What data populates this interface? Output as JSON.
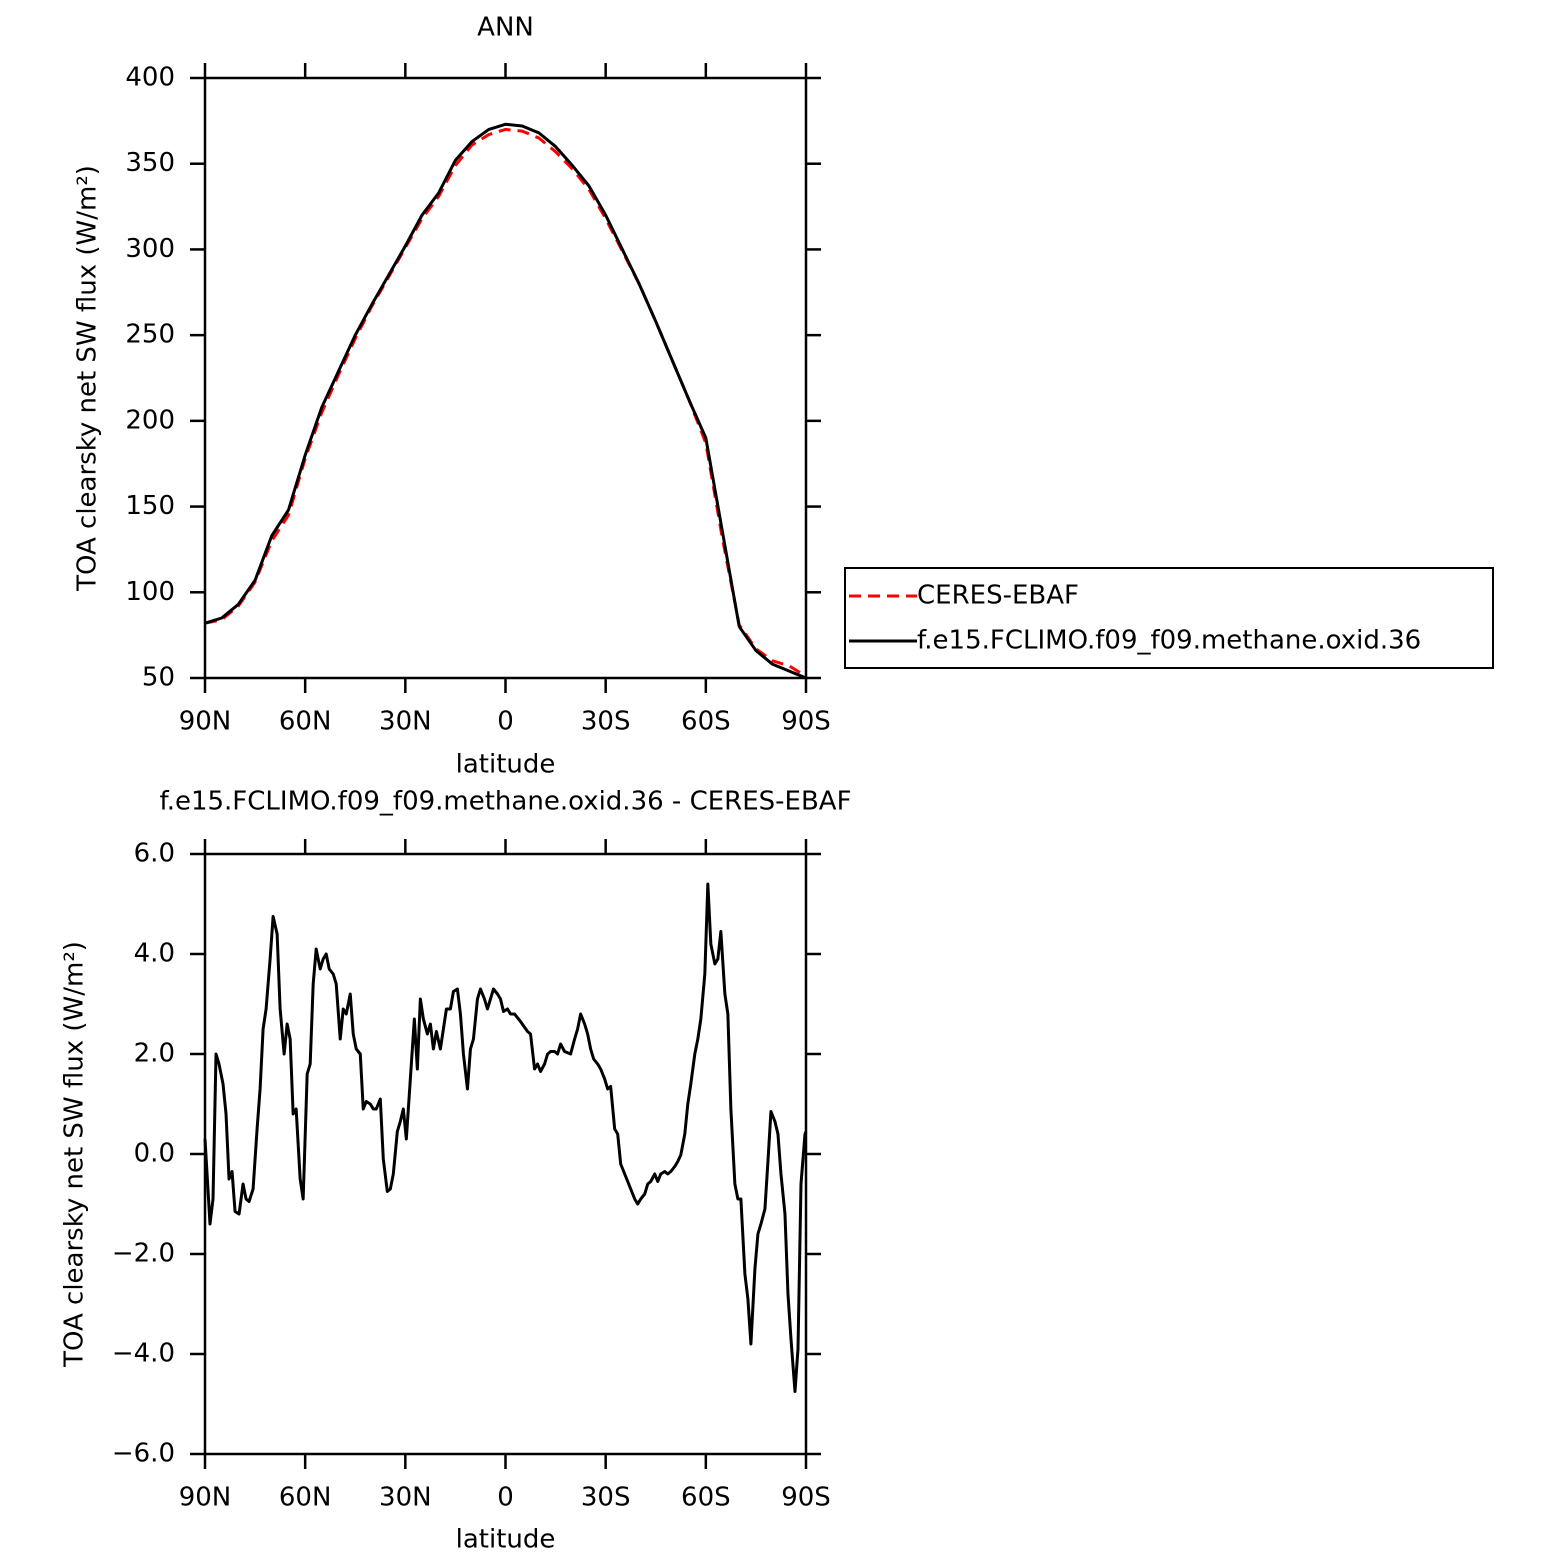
{
  "chart_data": [
    {
      "type": "line",
      "title": "ANN",
      "x_label": "latitude",
      "y_label": "TOA clearsky net SW flux (W/m²)",
      "x": [
        90,
        85,
        80,
        75,
        70,
        65,
        60,
        55,
        50,
        45,
        40,
        35,
        30,
        25,
        20,
        15,
        10,
        5,
        0,
        -5,
        -10,
        -15,
        -20,
        -25,
        -30,
        -35,
        -40,
        -45,
        -50,
        -55,
        -60,
        -65,
        -70,
        -75,
        -80,
        -85,
        -90
      ],
      "series": [
        {
          "name": "CERES-EBAF",
          "color": "#ff0000",
          "line_style": "dashed",
          "values": [
            82,
            84,
            92,
            106,
            130,
            145,
            178,
            205,
            227,
            248,
            267,
            284,
            301,
            318,
            331,
            349,
            361,
            367,
            370,
            369,
            365,
            357,
            347,
            335,
            318,
            299,
            280,
            258,
            235,
            212,
            187,
            131,
            81,
            67,
            60,
            57,
            51
          ]
        },
        {
          "name": "f.e15.FCLIMO.f09_f09.methane.oxid.36",
          "color": "#000000",
          "line_style": "solid",
          "values": [
            82,
            85,
            93,
            107,
            133,
            148,
            180,
            208,
            229,
            250,
            268,
            285,
            302,
            320,
            333,
            352,
            363,
            370,
            373,
            372,
            368,
            360,
            349,
            337,
            320,
            300,
            280,
            258,
            235,
            212,
            190,
            135,
            80,
            66,
            58,
            54,
            50
          ]
        }
      ],
      "xlim": [
        90,
        -90
      ],
      "xticks": [
        {
          "value": 90,
          "label": "90N"
        },
        {
          "value": 60,
          "label": "60N"
        },
        {
          "value": 30,
          "label": "30N"
        },
        0,
        {
          "value": -30,
          "label": "30S"
        },
        {
          "value": -60,
          "label": "60S"
        },
        {
          "value": -90,
          "label": "90S"
        }
      ],
      "ylim": [
        50,
        400
      ],
      "yticks": [
        50,
        100,
        150,
        200,
        250,
        300,
        350,
        400
      ],
      "legend": "outside-right"
    },
    {
      "type": "line",
      "title": "f.e15.FCLIMO.f09_f09.methane.oxid.36 - CERES-EBAF",
      "x_label": "latitude",
      "y_label": "TOA clearsky net SW flux (W/m²)",
      "color": "#000000",
      "x": [
        90,
        88.5,
        87.6,
        86.7,
        85.8,
        84.6,
        83.7,
        82.8,
        81.9,
        81,
        79.8,
        78.6,
        77.7,
        76.8,
        75.6,
        74.4,
        73.5,
        72.6,
        71.7,
        70.5,
        69.6,
        68.4,
        67.5,
        66.3,
        65.4,
        64.5,
        63.6,
        62.7,
        61.5,
        60.6,
        59.4,
        58.5,
        57.6,
        56.7,
        55.5,
        54.6,
        53.7,
        52.8,
        51.6,
        50.7,
        49.5,
        48.6,
        47.7,
        46.5,
        45.6,
        44.7,
        43.5,
        42.6,
        41.7,
        40.5,
        39.6,
        38.7,
        37.5,
        36.6,
        35.4,
        34.5,
        33.6,
        32.4,
        31.5,
        30.6,
        29.7,
        28.5,
        27.3,
        26.4,
        25.5,
        24.6,
        23.4,
        22.5,
        21.6,
        20.7,
        19.5,
        18.6,
        17.7,
        16.5,
        15.6,
        14.4,
        13.5,
        12.6,
        11.4,
        10.5,
        9.6,
        8.4,
        7.5,
        6.3,
        5.4,
        4.5,
        3.6,
        2.4,
        1.5,
        0.6,
        -0.6,
        -1.5,
        -2.7,
        -4.5,
        -6.6,
        -7.5,
        -8.7,
        -9.6,
        -10.5,
        -11.7,
        -12.6,
        -13.5,
        -14.7,
        -15.6,
        -16.5,
        -17.7,
        -19.5,
        -20.7,
        -21.6,
        -22.5,
        -23.7,
        -24.6,
        -25.5,
        -26.4,
        -27.6,
        -28.5,
        -29.7,
        -30.6,
        -31.5,
        -32.7,
        -33.6,
        -34.5,
        -35.7,
        -37.5,
        -38.7,
        -39.6,
        -40.5,
        -41.7,
        -42.6,
        -43.5,
        -44.7,
        -45.6,
        -46.5,
        -47.7,
        -48.6,
        -49.5,
        -50.7,
        -51.6,
        -52.5,
        -53.7,
        -54.6,
        -55.5,
        -56.7,
        -57.6,
        -58.5,
        -59.7,
        -60.6,
        -61.5,
        -62.7,
        -63.6,
        -64.5,
        -65.7,
        -66.6,
        -67.5,
        -68.7,
        -69.6,
        -70.5,
        -71.7,
        -72.6,
        -73.5,
        -74.7,
        -75.6,
        -76.5,
        -77.7,
        -78.6,
        -79.5,
        -80.7,
        -81.6,
        -82.5,
        -83.7,
        -84.6,
        -85.5,
        -86.7,
        -87.6,
        -88.5,
        -89.7,
        -90
      ],
      "values": [
        0.3,
        -1.4,
        -0.9,
        2.0,
        1.8,
        1.4,
        0.8,
        -0.5,
        -0.35,
        -1.15,
        -1.2,
        -0.6,
        -0.9,
        -0.95,
        -0.7,
        0.5,
        1.3,
        2.5,
        2.9,
        3.9,
        4.75,
        4.4,
        2.9,
        2.0,
        2.6,
        2.3,
        0.8,
        0.9,
        -0.5,
        -0.9,
        1.6,
        1.8,
        3.4,
        4.1,
        3.7,
        3.9,
        4.0,
        3.7,
        3.6,
        3.4,
        2.3,
        2.9,
        2.8,
        3.2,
        2.4,
        2.1,
        2.0,
        0.9,
        1.05,
        1.0,
        0.9,
        0.9,
        1.1,
        -0.1,
        -0.75,
        -0.7,
        -0.4,
        0.45,
        0.65,
        0.9,
        0.3,
        1.5,
        2.7,
        1.7,
        3.1,
        2.7,
        2.4,
        2.6,
        2.1,
        2.45,
        2.1,
        2.5,
        2.9,
        2.9,
        3.25,
        3.3,
        2.8,
        2.0,
        1.3,
        2.1,
        2.3,
        3.1,
        3.3,
        3.1,
        2.9,
        3.1,
        3.3,
        3.2,
        3.1,
        2.85,
        2.9,
        2.8,
        2.8,
        2.65,
        2.45,
        2.4,
        1.7,
        1.8,
        1.65,
        1.8,
        2.0,
        2.05,
        2.05,
        2.0,
        2.2,
        2.05,
        2.0,
        2.3,
        2.5,
        2.8,
        2.6,
        2.4,
        2.1,
        1.9,
        1.8,
        1.7,
        1.5,
        1.3,
        1.35,
        0.5,
        0.4,
        -0.2,
        -0.4,
        -0.7,
        -0.9,
        -1.0,
        -0.9,
        -0.8,
        -0.6,
        -0.55,
        -0.4,
        -0.55,
        -0.4,
        -0.35,
        -0.4,
        -0.35,
        -0.25,
        -0.15,
        -0.02,
        0.4,
        1.0,
        1.4,
        2.0,
        2.3,
        2.7,
        3.6,
        5.4,
        4.2,
        3.8,
        3.9,
        4.45,
        3.2,
        2.8,
        0.9,
        -0.6,
        -0.9,
        -0.9,
        -2.4,
        -2.9,
        -3.8,
        -2.3,
        -1.6,
        -1.4,
        -1.1,
        -0.15,
        0.85,
        0.65,
        0.4,
        -0.4,
        -1.2,
        -2.8,
        -3.7,
        -4.75,
        -3.9,
        -0.6,
        0.4,
        0.45
      ],
      "xlim": [
        90,
        -90
      ],
      "xticks": [
        {
          "value": 90,
          "label": "90N"
        },
        {
          "value": 60,
          "label": "60N"
        },
        {
          "value": 30,
          "label": "30N"
        },
        0,
        {
          "value": -30,
          "label": "30S"
        },
        {
          "value": -60,
          "label": "60S"
        },
        {
          "value": -90,
          "label": "90S"
        }
      ],
      "ylim": [
        -6,
        6
      ],
      "yticks": [
        {
          "value": -6,
          "label": "−6.0"
        },
        {
          "value": -4,
          "label": "−4.0"
        },
        {
          "value": -2,
          "label": "−2.0"
        },
        {
          "value": 0,
          "label": "0.0"
        },
        {
          "value": 2,
          "label": "2.0"
        },
        {
          "value": 4,
          "label": "4.0"
        },
        {
          "value": 6,
          "label": "6.0"
        }
      ]
    }
  ]
}
